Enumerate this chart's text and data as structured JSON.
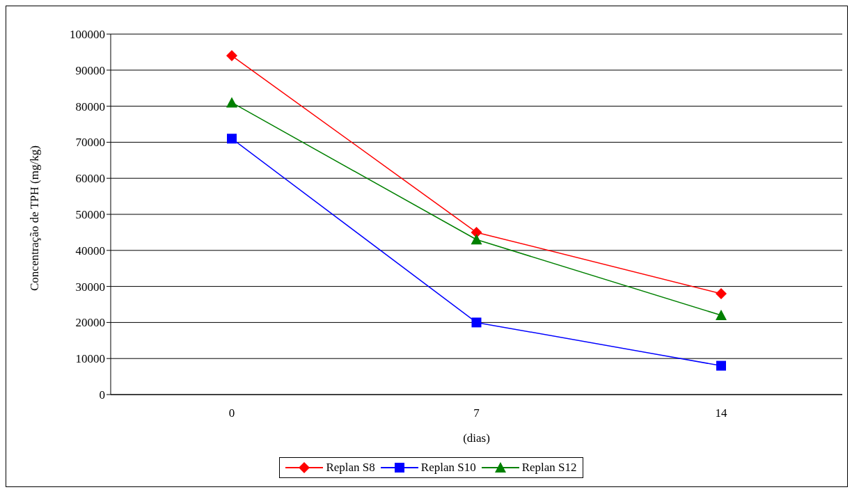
{
  "chart_data": {
    "type": "line",
    "xlabel": "(dias)",
    "ylabel": "Concentração de TPH (mg/kg)",
    "categories": [
      "0",
      "7",
      "14"
    ],
    "series": [
      {
        "name": "Replan S8",
        "color": "#ff0000",
        "marker": "diamond",
        "values": [
          94000,
          45000,
          28000
        ]
      },
      {
        "name": "Replan S10",
        "color": "#0000ff",
        "marker": "square",
        "values": [
          71000,
          20000,
          8000
        ]
      },
      {
        "name": "Replan S12",
        "color": "#008000",
        "marker": "triangle",
        "values": [
          81000,
          43000,
          22000
        ]
      }
    ],
    "ylim": [
      0,
      100000
    ],
    "yticks": [
      0,
      10000,
      20000,
      30000,
      40000,
      50000,
      60000,
      70000,
      80000,
      90000,
      100000
    ],
    "grid": "y",
    "legend": "bottom"
  }
}
